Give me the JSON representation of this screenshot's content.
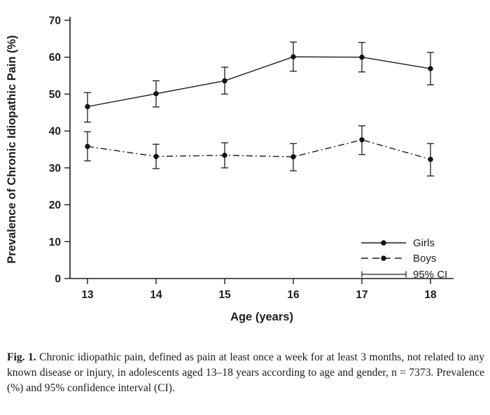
{
  "colors": {
    "ink": "#1c1c1c",
    "marker": "#111111",
    "background": "#ffffff"
  },
  "chart_data": {
    "type": "line",
    "title": "",
    "xlabel": "Age (years)",
    "ylabel": "Prevalence of Chronic Idiopathic Pain (%)",
    "x": [
      13,
      14,
      15,
      16,
      17,
      18
    ],
    "xticklabels": [
      "13",
      "14",
      "15",
      "16",
      "17",
      "18"
    ],
    "yticks": [
      0,
      10,
      20,
      30,
      40,
      50,
      60,
      70
    ],
    "ylim": [
      0,
      70
    ],
    "grid": false,
    "legend_position": "lower-right-inside",
    "error_bars": "95% confidence interval",
    "series": [
      {
        "name": "Girls",
        "line_style": "solid",
        "marker": "filled-circle",
        "values": [
          46.6,
          50.1,
          53.6,
          60.1,
          60.0,
          56.9
        ],
        "ci_low": [
          42.4,
          46.5,
          50.0,
          56.2,
          56.0,
          52.5
        ],
        "ci_high": [
          50.4,
          53.6,
          57.3,
          64.1,
          64.0,
          61.3
        ]
      },
      {
        "name": "Boys",
        "line_style": "dash-dot",
        "marker": "filled-circle",
        "values": [
          35.8,
          33.1,
          33.4,
          33.0,
          37.6,
          32.3
        ],
        "ci_low": [
          31.9,
          29.8,
          30.0,
          29.2,
          33.6,
          27.8
        ],
        "ci_high": [
          39.8,
          36.4,
          36.8,
          36.6,
          41.4,
          36.6
        ]
      }
    ],
    "ci_legend_label": "95% CI"
  },
  "caption": {
    "label": "Fig. 1.",
    "text": "Chronic idiopathic pain, defined as pain at least once a week for at least 3 months, not related to any known disease or injury, in adolescents aged 13–18 years according to age and gender, n = 7373. Prevalence (%) and 95% confidence interval (CI)."
  }
}
